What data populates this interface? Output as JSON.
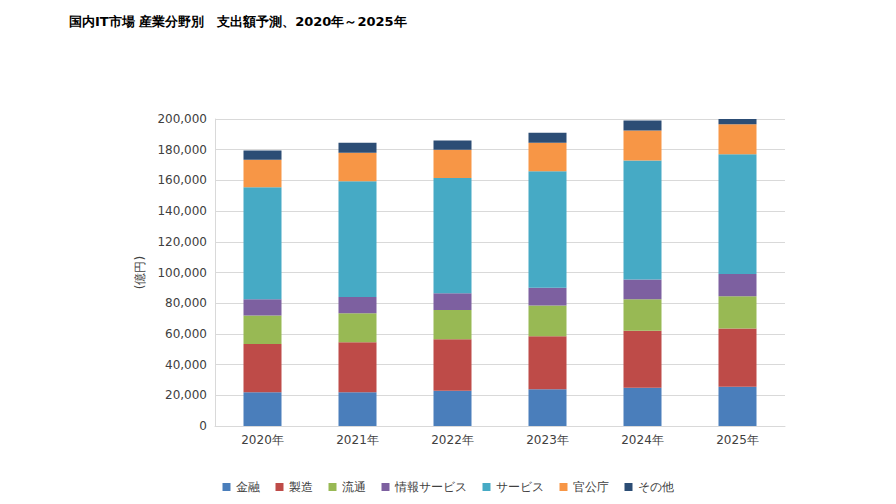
{
  "chart_data": {
    "type": "bar",
    "title": "国内IT市場 産業分野別　支出額予測、2020年～2025年",
    "y_label": "(億円)",
    "categories": [
      "2020年",
      "2021年",
      "2022年",
      "2023年",
      "2024年",
      "2025年"
    ],
    "series": [
      {
        "name": "金融",
        "color": "#4a7ebb",
        "values": [
          22000,
          22000,
          23000,
          24000,
          25000,
          25500
        ]
      },
      {
        "name": "製造",
        "color": "#be4b48",
        "values": [
          31500,
          32500,
          33500,
          34500,
          37000,
          38000
        ]
      },
      {
        "name": "流通",
        "color": "#98b954",
        "values": [
          18500,
          19000,
          19000,
          20000,
          20500,
          21000
        ]
      },
      {
        "name": "情報サービス",
        "color": "#7d60a0",
        "values": [
          10500,
          10500,
          11000,
          11500,
          13000,
          14500
        ]
      },
      {
        "name": "サービス",
        "color": "#46aac5",
        "values": [
          73000,
          75500,
          75000,
          76000,
          77500,
          78000
        ]
      },
      {
        "name": "官公庁",
        "color": "#f79646",
        "values": [
          18000,
          18500,
          18500,
          18500,
          19500,
          19500
        ]
      },
      {
        "name": "その他",
        "color": "#2c4d75",
        "values": [
          6000,
          6500,
          6000,
          6500,
          6500,
          3500
        ]
      }
    ],
    "ylim": [
      0,
      200000
    ],
    "yticks": [
      0,
      {
        "value": 20000,
        "label": "20,000"
      },
      {
        "value": 40000,
        "label": "40,000"
      },
      {
        "value": 60000,
        "label": "60,000"
      },
      {
        "value": 80000,
        "label": "80,000"
      },
      {
        "value": 100000,
        "label": "100,000"
      },
      {
        "value": 120000,
        "label": "120,000"
      },
      {
        "value": 140000,
        "label": "140,000"
      },
      {
        "value": 160000,
        "label": "160,000"
      },
      {
        "value": 180000,
        "label": "180,000"
      },
      {
        "value": 200000,
        "label": "200,000"
      }
    ],
    "stacked": true,
    "grid": true,
    "legend": "bottom"
  }
}
